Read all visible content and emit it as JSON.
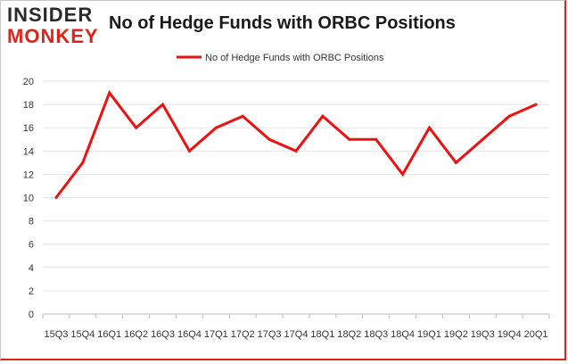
{
  "logo": {
    "top": "INSIDER",
    "bottom": "MONKEY"
  },
  "chart_data": {
    "type": "line",
    "title": "No of Hedge Funds with ORBC Positions",
    "xlabel": "",
    "ylabel": "",
    "legend": "top-center",
    "grid": true,
    "ylim": [
      0,
      20
    ],
    "yticks": [
      0,
      2,
      4,
      6,
      8,
      10,
      12,
      14,
      16,
      18,
      20
    ],
    "categories": [
      "15Q3",
      "15Q4",
      "16Q1",
      "16Q2",
      "16Q3",
      "16Q4",
      "17Q1",
      "17Q2",
      "17Q3",
      "17Q4",
      "18Q1",
      "18Q2",
      "18Q3",
      "18Q4",
      "19Q1",
      "19Q2",
      "19Q3",
      "19Q4",
      "20Q1"
    ],
    "series": [
      {
        "name": "No of Hedge Funds with ORBC Positions",
        "color": "#ee1111",
        "values": [
          10,
          13,
          19,
          16,
          18,
          14,
          16,
          17,
          15,
          14,
          17,
          15,
          15,
          12,
          16,
          13,
          15,
          17,
          18
        ]
      }
    ]
  }
}
